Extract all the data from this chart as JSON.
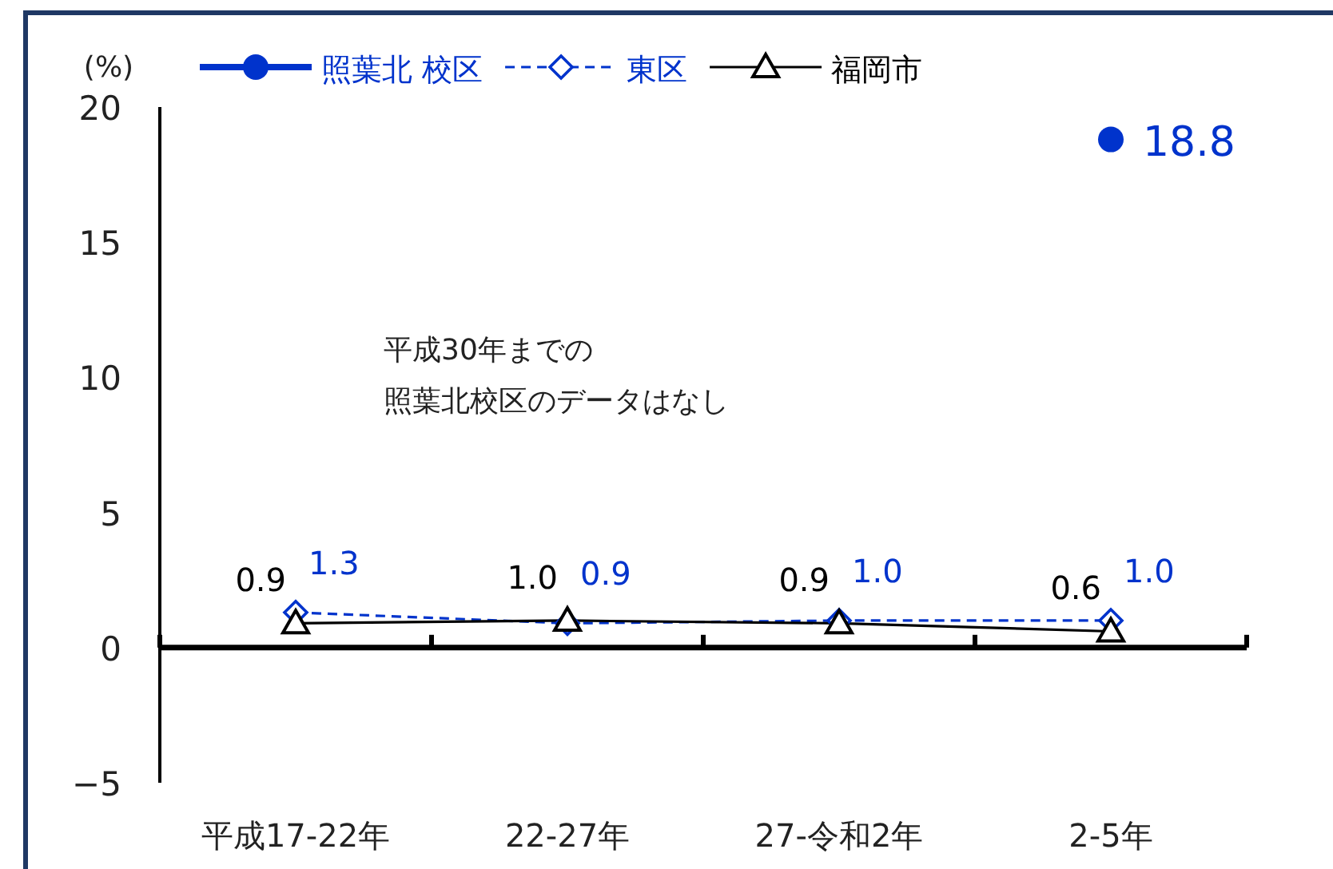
{
  "chart_data": {
    "type": "line",
    "ylabel": "(%)",
    "categories": [
      "平成17-22年",
      "22-27年",
      "27-令和2年",
      "2-5年"
    ],
    "series": [
      {
        "name": "照葉北 校区",
        "color": "#0033cc",
        "values": [
          null,
          null,
          null,
          18.8
        ],
        "value_labels": [
          null,
          null,
          null,
          "18.8"
        ],
        "marker": "circle",
        "line_style": "solid"
      },
      {
        "name": "東区",
        "color": "#0033cc",
        "values": [
          1.3,
          0.9,
          1.0,
          1.0
        ],
        "value_labels": [
          "1.3",
          "0.9",
          "1.0",
          "1.0"
        ],
        "marker": "diamond",
        "line_style": "dashed"
      },
      {
        "name": "福岡市",
        "color": "#000000",
        "values": [
          0.9,
          1.0,
          0.9,
          0.6
        ],
        "value_labels": [
          "0.9",
          "1.0",
          "0.9",
          "0.6"
        ],
        "marker": "triangle",
        "line_style": "solid"
      }
    ],
    "ylim": [
      -5,
      20
    ],
    "yticks": [
      -5,
      0,
      5,
      10,
      15,
      20
    ],
    "grid": false,
    "legend": "top",
    "annotations": [
      "平成30年までの",
      "照葉北校区のデータはなし"
    ]
  }
}
